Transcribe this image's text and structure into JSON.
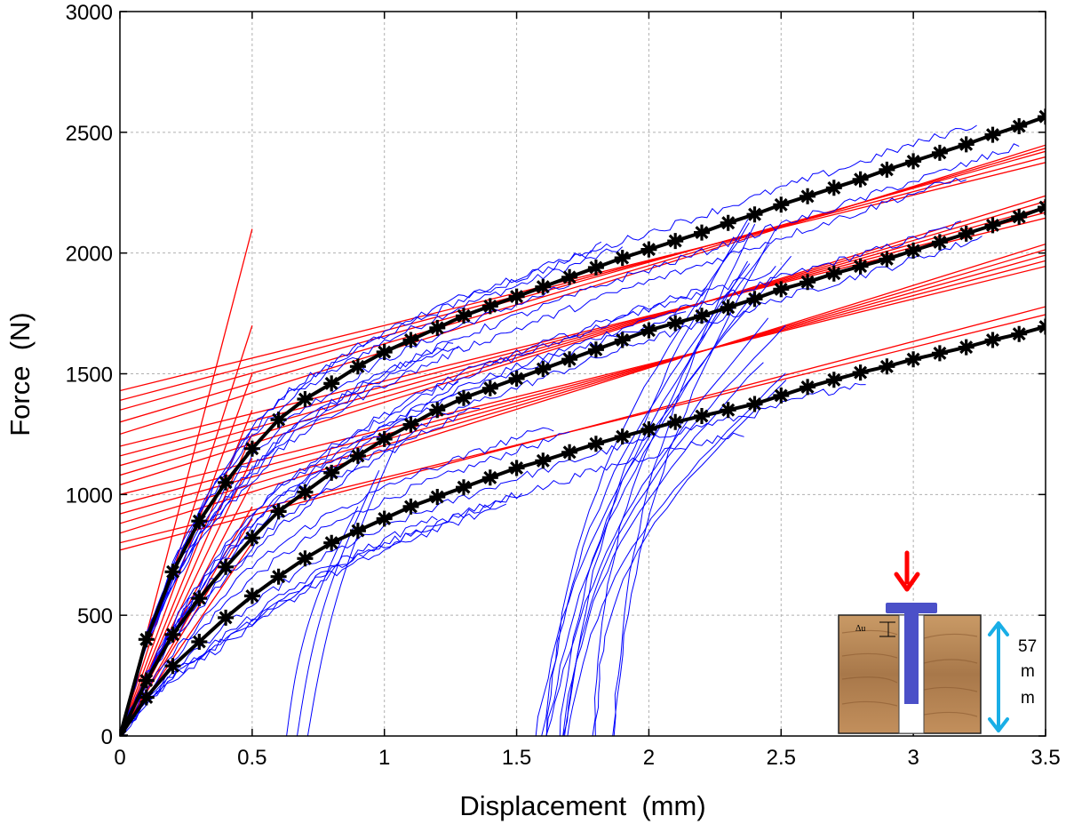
{
  "chart_data": {
    "type": "line",
    "title": "",
    "xlabel": "Displacement  (mm)",
    "ylabel": "Force  (N)",
    "xlim": [
      0,
      3.5
    ],
    "ylim": [
      0,
      3000
    ],
    "xticks": [
      0,
      0.5,
      1,
      1.5,
      2,
      2.5,
      3,
      3.5
    ],
    "xtick_labels": [
      "0",
      "0.5",
      "1",
      "1.5",
      "2",
      "2.5",
      "3",
      "3.5"
    ],
    "yticks": [
      0,
      500,
      1000,
      1500,
      2000,
      2500,
      3000
    ],
    "ytick_labels": [
      "0",
      "500",
      "1000",
      "1500",
      "2000",
      "2500",
      "3000"
    ],
    "grid": true,
    "colors": {
      "mean_curve": "#000000",
      "raw_tests": "#0000ff",
      "fitted_lines": "#ff0000",
      "inset_arrow_red": "#ff0000",
      "inset_arrow_cyan": "#19aee6",
      "inset_pin": "#4b50c8",
      "inset_wood": "#b98a5a"
    },
    "series": [
      {
        "role": "mean-curve-upper",
        "color": "#000000",
        "marker": "star",
        "x": [
          0,
          0.1,
          0.2,
          0.3,
          0.4,
          0.5,
          0.6,
          0.7,
          0.8,
          0.9,
          1.0,
          1.1,
          1.2,
          1.3,
          1.4,
          1.5,
          1.6,
          1.7,
          1.8,
          1.9,
          2.0,
          2.1,
          2.2,
          2.3,
          2.4,
          2.5,
          2.6,
          2.7,
          2.8,
          2.9,
          3.0,
          3.1,
          3.2,
          3.3,
          3.4,
          3.5
        ],
        "y": [
          0,
          400,
          680,
          890,
          1050,
          1190,
          1310,
          1395,
          1460,
          1530,
          1590,
          1640,
          1690,
          1740,
          1780,
          1820,
          1860,
          1900,
          1940,
          1980,
          2015,
          2050,
          2085,
          2125,
          2160,
          2200,
          2235,
          2270,
          2305,
          2345,
          2380,
          2415,
          2450,
          2490,
          2525,
          2565
        ]
      },
      {
        "role": "mean-curve-middle",
        "color": "#000000",
        "marker": "star",
        "x": [
          0,
          0.1,
          0.2,
          0.3,
          0.4,
          0.5,
          0.6,
          0.7,
          0.8,
          0.9,
          1.0,
          1.1,
          1.2,
          1.3,
          1.4,
          1.5,
          1.6,
          1.7,
          1.8,
          1.9,
          2.0,
          2.1,
          2.2,
          2.3,
          2.4,
          2.5,
          2.6,
          2.7,
          2.8,
          2.9,
          3.0,
          3.1,
          3.2,
          3.3,
          3.4,
          3.5
        ],
        "y": [
          0,
          230,
          420,
          570,
          700,
          820,
          930,
          1010,
          1090,
          1160,
          1230,
          1290,
          1350,
          1400,
          1440,
          1480,
          1520,
          1560,
          1600,
          1640,
          1680,
          1710,
          1740,
          1775,
          1810,
          1850,
          1880,
          1915,
          1945,
          1975,
          2010,
          2045,
          2080,
          2115,
          2150,
          2190
        ]
      },
      {
        "role": "mean-curve-lower",
        "color": "#000000",
        "marker": "star",
        "x": [
          0,
          0.1,
          0.2,
          0.3,
          0.4,
          0.5,
          0.6,
          0.7,
          0.8,
          0.9,
          1.0,
          1.1,
          1.2,
          1.3,
          1.4,
          1.5,
          1.6,
          1.7,
          1.8,
          1.9,
          2.0,
          2.1,
          2.2,
          2.3,
          2.4,
          2.5,
          2.6,
          2.7,
          2.8,
          2.9,
          3.0,
          3.1,
          3.2,
          3.3,
          3.4,
          3.5
        ],
        "y": [
          0,
          160,
          290,
          390,
          490,
          580,
          660,
          735,
          800,
          850,
          900,
          950,
          990,
          1030,
          1070,
          1110,
          1140,
          1175,
          1210,
          1240,
          1270,
          1300,
          1325,
          1350,
          1375,
          1410,
          1445,
          1475,
          1505,
          1530,
          1560,
          1585,
          1610,
          1640,
          1665,
          1695
        ]
      }
    ]
  },
  "inset": {
    "delta_label": "Δu",
    "dim_label_1": "57",
    "dim_label_2": "m",
    "dim_label_3": "m"
  }
}
